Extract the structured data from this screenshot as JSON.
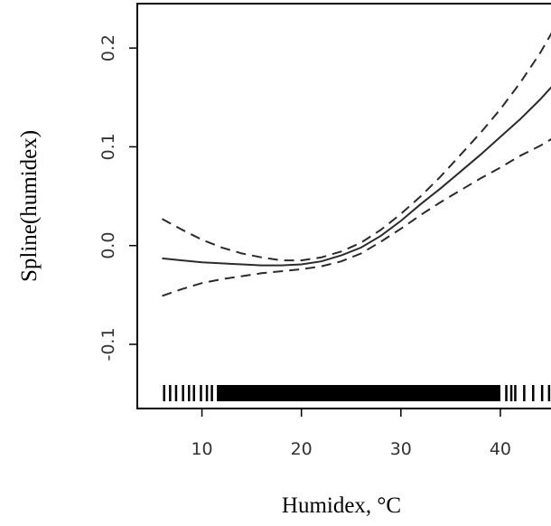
{
  "chart_data": {
    "type": "line",
    "xlabel": "Humidex, °C",
    "ylabel": "Spline(humidex)",
    "xlim": [
      3.5,
      46
    ],
    "ylim": [
      -0.165,
      0.245
    ],
    "x_ticks": [
      10,
      20,
      30,
      40
    ],
    "x_tick_labels": [
      "10",
      "20",
      "30",
      "40"
    ],
    "y_ticks": [
      -0.1,
      0.0,
      0.1,
      0.2
    ],
    "y_tick_labels": [
      "-0.1",
      "0.0",
      "0.1",
      "0.2"
    ],
    "grid": false,
    "legend": "none",
    "series": [
      {
        "style": "solid",
        "x": [
          6,
          8,
          10,
          12,
          14,
          16,
          18,
          20,
          22,
          24,
          26,
          28,
          30,
          32,
          34,
          36,
          38,
          40,
          42,
          44,
          46
        ],
        "y": [
          -0.013,
          -0.015,
          -0.017,
          -0.018,
          -0.019,
          -0.02,
          -0.02,
          -0.019,
          -0.016,
          -0.01,
          -0.002,
          0.01,
          0.025,
          0.042,
          0.058,
          0.075,
          0.092,
          0.11,
          0.128,
          0.148,
          0.17
        ]
      },
      {
        "style": "dashed",
        "x": [
          6,
          8,
          10,
          12,
          14,
          16,
          18,
          20,
          22,
          24,
          26,
          28,
          30,
          32,
          34,
          36,
          38,
          40,
          42,
          44,
          46
        ],
        "y": [
          0.027,
          0.016,
          0.006,
          -0.002,
          -0.008,
          -0.012,
          -0.015,
          -0.015,
          -0.012,
          -0.006,
          0.003,
          0.016,
          0.032,
          0.05,
          0.07,
          0.092,
          0.114,
          0.138,
          0.165,
          0.195,
          0.23
        ]
      },
      {
        "style": "dashed",
        "x": [
          6,
          8,
          10,
          12,
          14,
          16,
          18,
          20,
          22,
          24,
          26,
          28,
          30,
          32,
          34,
          36,
          38,
          40,
          42,
          44,
          46
        ],
        "y": [
          -0.051,
          -0.044,
          -0.038,
          -0.034,
          -0.031,
          -0.028,
          -0.026,
          -0.024,
          -0.021,
          -0.016,
          -0.008,
          0.004,
          0.017,
          0.031,
          0.044,
          0.056,
          0.068,
          0.079,
          0.091,
          0.101,
          0.113
        ]
      }
    ],
    "rug": {
      "dense_range": [
        11.5,
        40
      ],
      "sparse_x": [
        6.2,
        6.8,
        7.4,
        8.1,
        8.7,
        9.2,
        9.9,
        10.5,
        11.0,
        40.6,
        41.1,
        41.5,
        42.4,
        43.3,
        44.2,
        44.9,
        45.5
      ]
    }
  }
}
